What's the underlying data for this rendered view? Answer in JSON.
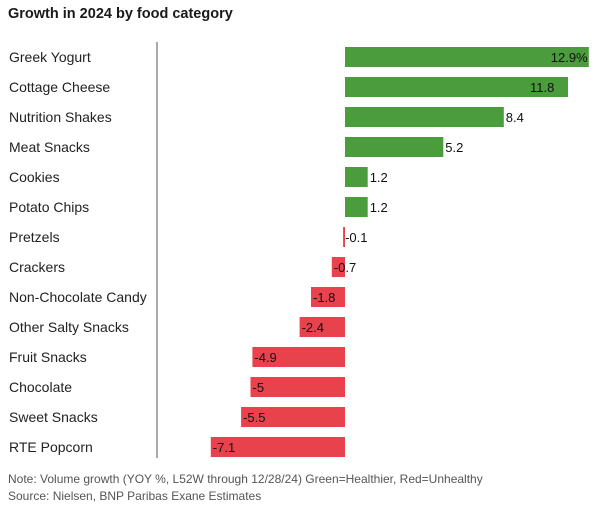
{
  "chart_data": {
    "type": "bar",
    "orientation": "horizontal",
    "title": "Growth in 2024 by food category",
    "categories": [
      "Greek Yogurt",
      "Cottage Cheese",
      "Nutrition Shakes",
      "Meat Snacks",
      "Cookies",
      "Potato Chips",
      "Pretzels",
      "Crackers",
      "Non-Chocolate Candy",
      "Other Salty Snacks",
      "Fruit Snacks",
      "Chocolate",
      "Sweet Snacks",
      "RTE Popcorn"
    ],
    "values": [
      12.9,
      11.8,
      8.4,
      5.2,
      1.2,
      1.2,
      -0.1,
      -0.7,
      -1.8,
      -2.4,
      -4.9,
      -5,
      -5.5,
      -7.1
    ],
    "value_labels": [
      "12.9%",
      "11.8",
      "8.4",
      "5.2",
      "1.2",
      "1.2",
      "-0.1",
      "-0.7",
      "-1.8",
      "-2.4",
      "-4.9",
      "-5",
      "-5.5",
      "-7.1"
    ],
    "xlim": [
      -7.1,
      12.9
    ],
    "grid": false,
    "colors": {
      "positive": "#4a9c3c",
      "negative": "#e8424c",
      "axis": "#555555"
    }
  },
  "notes": {
    "note": "Note: Volume growth (YOY %, L52W through 12/28/24) Green=Healthier, Red=Unhealthy",
    "source": "Source: Nielsen, BNP Paribas Exane Estimates"
  }
}
